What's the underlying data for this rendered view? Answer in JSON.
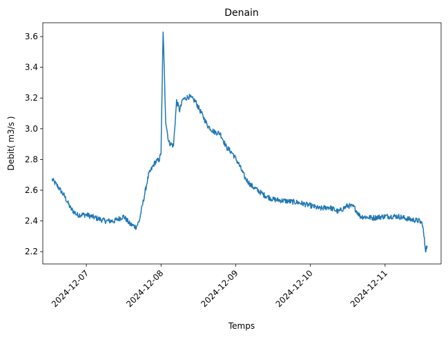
{
  "chart_data": {
    "type": "line",
    "title": "Denain",
    "xlabel": "Temps",
    "ylabel": "Debit( m3/s )",
    "x_tick_labels": [
      "2024-12-07",
      "2024-12-08",
      "2024-12-09",
      "2024-12-10",
      "2024-12-11"
    ],
    "y_tick_labels": [
      "2.2",
      "2.4",
      "2.6",
      "2.8",
      "3.0",
      "3.2",
      "3.4",
      "3.6"
    ],
    "xlim": [
      "2024-12-06 10:00",
      "2024-12-11 18:00"
    ],
    "ylim": [
      2.12,
      3.69
    ],
    "grid": false,
    "series": [
      {
        "color": "#1f77b4",
        "x": [
          "2024-12-06 13:00",
          "2024-12-06 15:00",
          "2024-12-06 17:00",
          "2024-12-06 19:00",
          "2024-12-06 21:00",
          "2024-12-07 00:00",
          "2024-12-07 03:00",
          "2024-12-07 06:00",
          "2024-12-07 09:00",
          "2024-12-07 12:00",
          "2024-12-07 14:00",
          "2024-12-07 16:00",
          "2024-12-07 17:00",
          "2024-12-07 18:30",
          "2024-12-07 20:00",
          "2024-12-07 22:00",
          "2024-12-07 23:30",
          "2024-12-08 00:00",
          "2024-12-08 00:40",
          "2024-12-08 01:00",
          "2024-12-08 01:30",
          "2024-12-08 02:30",
          "2024-12-08 04:00",
          "2024-12-08 05:00",
          "2024-12-08 06:00",
          "2024-12-08 07:00",
          "2024-12-08 09:00",
          "2024-12-08 11:00",
          "2024-12-08 13:00",
          "2024-12-08 15:00",
          "2024-12-08 17:00",
          "2024-12-08 19:00",
          "2024-12-08 21:00",
          "2024-12-08 23:00",
          "2024-12-09 01:00",
          "2024-12-09 03:00",
          "2024-12-09 05:00",
          "2024-12-09 09:00",
          "2024-12-09 12:00",
          "2024-12-09 16:00",
          "2024-12-09 20:00",
          "2024-12-10 00:00",
          "2024-12-10 03:00",
          "2024-12-10 06:00",
          "2024-12-10 09:00",
          "2024-12-10 12:00",
          "2024-12-10 14:00",
          "2024-12-10 16:00",
          "2024-12-10 20:00",
          "2024-12-11 00:00",
          "2024-12-11 04:00",
          "2024-12-11 08:00",
          "2024-12-11 11:00",
          "2024-12-11 12:00",
          "2024-12-11 12:30",
          "2024-12-11 13:00",
          "2024-12-11 13:30"
        ],
        "y": [
          2.67,
          2.62,
          2.56,
          2.48,
          2.44,
          2.44,
          2.42,
          2.4,
          2.4,
          2.43,
          2.38,
          2.36,
          2.4,
          2.55,
          2.7,
          2.78,
          2.8,
          2.85,
          3.64,
          3.4,
          3.05,
          2.91,
          2.89,
          3.18,
          3.12,
          3.19,
          3.21,
          3.18,
          3.1,
          3.02,
          2.98,
          2.97,
          2.88,
          2.84,
          2.77,
          2.68,
          2.63,
          2.57,
          2.54,
          2.53,
          2.52,
          2.5,
          2.48,
          2.49,
          2.46,
          2.5,
          2.49,
          2.43,
          2.42,
          2.43,
          2.43,
          2.41,
          2.4,
          2.38,
          2.3,
          2.21,
          2.24
        ]
      }
    ]
  }
}
